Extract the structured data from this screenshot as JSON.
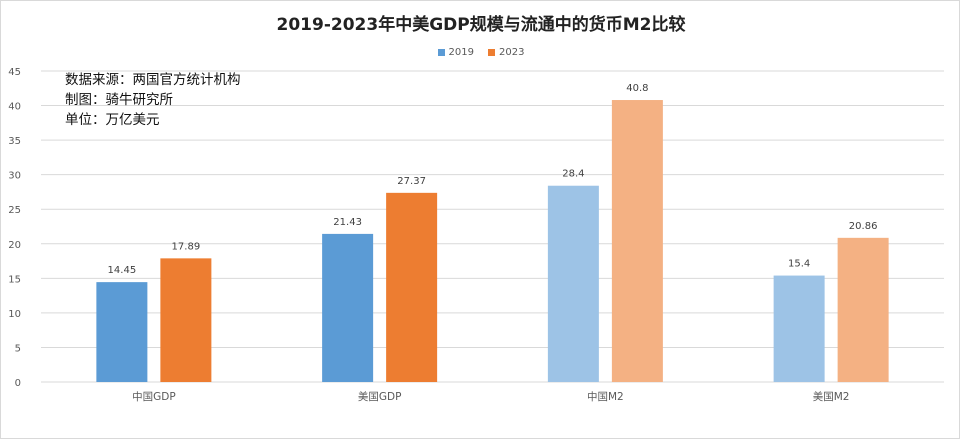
{
  "chart_data": {
    "type": "bar",
    "title": "2019-2023年中美GDP规模与流通中的货币M2比较",
    "categories": [
      "中国GDP",
      "美国GDP",
      "中国M2",
      "美国M2"
    ],
    "series": [
      {
        "name": "2019",
        "values": [
          14.45,
          21.43,
          28.4,
          15.4
        ],
        "colors": [
          "#5b9bd5",
          "#5b9bd5",
          "#9dc3e6",
          "#9dc3e6"
        ]
      },
      {
        "name": "2023",
        "values": [
          17.89,
          27.37,
          40.8,
          20.86
        ],
        "colors": [
          "#ed7d31",
          "#ed7d31",
          "#f4b183",
          "#f4b183"
        ]
      }
    ],
    "data_labels": [
      [
        "14.45",
        "21.43",
        "28.4",
        "15.4"
      ],
      [
        "17.89",
        "27.37",
        "40.8",
        "20.86"
      ]
    ],
    "ylim": [
      0,
      45
    ],
    "yticks": [
      0,
      5,
      10,
      15,
      20,
      25,
      30,
      35,
      40,
      45
    ],
    "legend": {
      "position": "top",
      "colors": [
        "#5b9bd5",
        "#ed7d31"
      ]
    },
    "grid": true,
    "annotations": [
      "数据来源：两国官方统计机构",
      "制图：骑牛研究所",
      "单位：万亿美元"
    ]
  }
}
